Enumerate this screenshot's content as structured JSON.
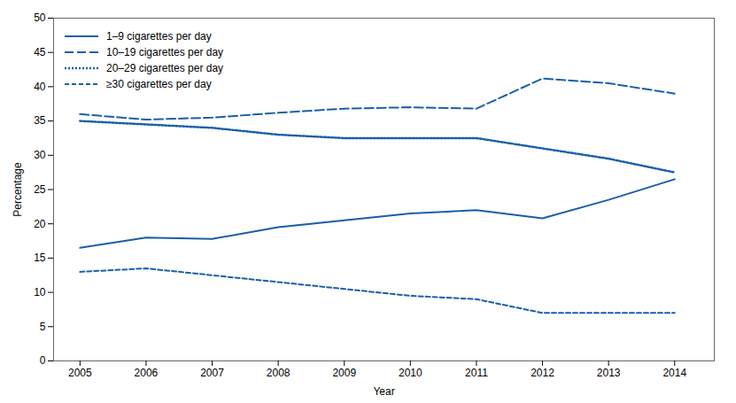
{
  "chart_data": {
    "type": "line",
    "x": [
      2005,
      2006,
      2007,
      2008,
      2009,
      2010,
      2011,
      2012,
      2013,
      2014
    ],
    "series": [
      {
        "name": "1–9 cigarettes per day",
        "values": [
          16.5,
          18.0,
          17.8,
          19.5,
          20.5,
          21.5,
          22.0,
          20.8,
          23.5,
          26.5
        ],
        "line_style": "solid"
      },
      {
        "name": "10–19 cigarettes per day",
        "values": [
          36.0,
          35.2,
          35.5,
          36.2,
          36.8,
          37.0,
          36.8,
          41.2,
          40.5,
          39.0
        ],
        "line_style": "dashed_long"
      },
      {
        "name": "20–29 cigarettes per day",
        "values": [
          35.0,
          34.5,
          34.0,
          33.0,
          32.5,
          32.5,
          32.5,
          31.0,
          29.5,
          27.5
        ],
        "line_style": "dotted"
      },
      {
        "name": "≥30 cigarettes per day",
        "values": [
          13.0,
          13.5,
          12.5,
          11.5,
          10.5,
          9.5,
          9.0,
          7.0,
          7.0,
          7.0
        ],
        "line_style": "dashed_short"
      }
    ],
    "color": "#1a5fa8",
    "xlabel": "Year",
    "ylabel": "Percentage",
    "xlim": [
      2004.6,
      2014.6
    ],
    "xticks": [
      2005,
      2006,
      2007,
      2008,
      2009,
      2010,
      2011,
      2012,
      2013,
      2014
    ],
    "ylim": [
      0,
      50
    ],
    "yticks": [
      0,
      5,
      10,
      15,
      20,
      25,
      30,
      35,
      40,
      45,
      50
    ],
    "legend": "upper left",
    "grid": false
  }
}
